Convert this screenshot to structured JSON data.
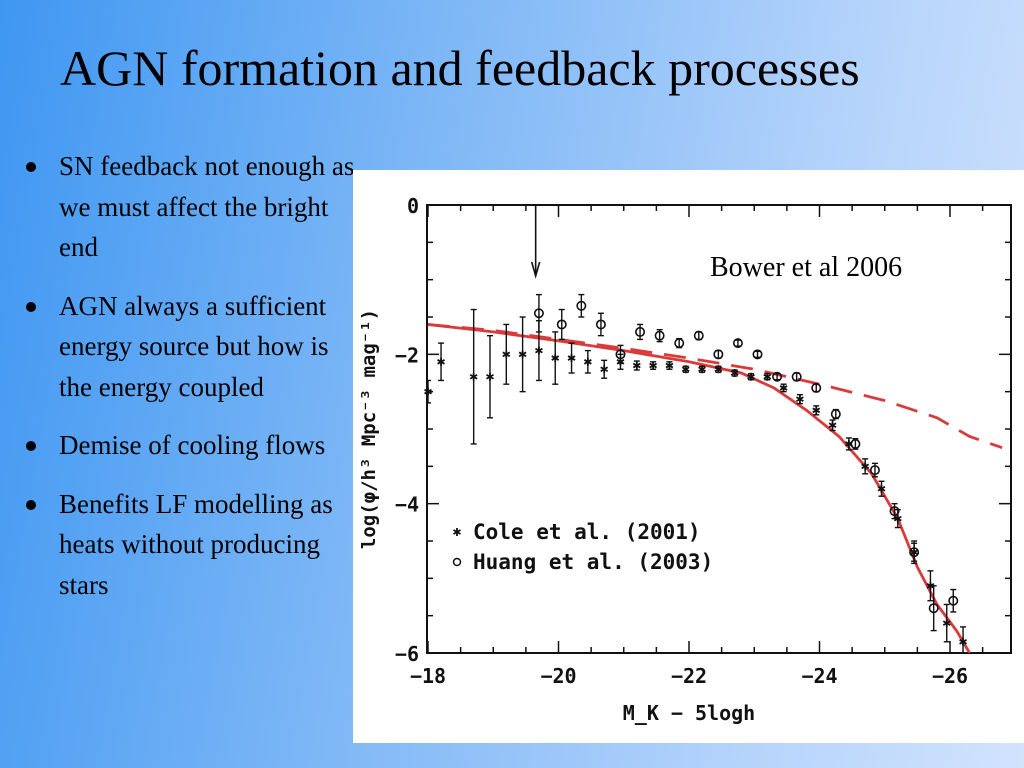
{
  "slide": {
    "title": "AGN formation and feedback processes",
    "bullets": [
      "SN feedback not enough as we must affect the bright end",
      "AGN always a sufficient energy source but how is the energy coupled",
      "Demise of cooling flows",
      "Benefits LF modelling as heats without producing stars"
    ]
  },
  "colors": {
    "background_left": "#3f97f2",
    "background_right": "#d2e3fd",
    "model_curves": "#d93b3b",
    "data_points": "#111111"
  },
  "chart_data": {
    "type": "scatter",
    "citation": "Bower et al 2006",
    "xlabel": "M_K − 5logh",
    "ylabel": "log(φ/h³ Mpc⁻³ mag⁻¹)",
    "xlim": [
      -18,
      -26.8
    ],
    "ylim": [
      -6,
      0
    ],
    "x_ticks": [
      -18,
      -20,
      -22,
      -24,
      -26
    ],
    "y_ticks": [
      0,
      -2,
      -4,
      -6
    ],
    "x_tick_labels": [
      "−18",
      "−20",
      "−22",
      "−24",
      "−26"
    ],
    "y_tick_labels": [
      "0",
      "−2",
      "−4",
      "−6"
    ],
    "grid": false,
    "legend_position": "bottom-left",
    "arrow_annotation_x": -19.65,
    "series": [
      {
        "name": "Cole et al. (2001)",
        "marker": "asterisk",
        "points": [
          {
            "x": -18.0,
            "y": -2.5,
            "err": 0.15
          },
          {
            "x": -18.2,
            "y": -2.1,
            "err": 0.25
          },
          {
            "x": -18.7,
            "y": -2.3,
            "err": 0.9
          },
          {
            "x": -18.95,
            "y": -2.3,
            "err": 0.55
          },
          {
            "x": -19.2,
            "y": -2.0,
            "err": 0.4
          },
          {
            "x": -19.45,
            "y": -2.0,
            "err": 0.5
          },
          {
            "x": -19.7,
            "y": -1.95,
            "err": 0.4
          },
          {
            "x": -19.95,
            "y": -2.05,
            "err": 0.35
          },
          {
            "x": -20.2,
            "y": -2.05,
            "err": 0.2
          },
          {
            "x": -20.45,
            "y": -2.1,
            "err": 0.15
          },
          {
            "x": -20.7,
            "y": -2.2,
            "err": 0.12
          },
          {
            "x": -20.95,
            "y": -2.1,
            "err": 0.1
          },
          {
            "x": -21.2,
            "y": -2.15,
            "err": 0.06
          },
          {
            "x": -21.45,
            "y": -2.15,
            "err": 0.05
          },
          {
            "x": -21.7,
            "y": -2.15,
            "err": 0.05
          },
          {
            "x": -21.95,
            "y": -2.2,
            "err": 0.04
          },
          {
            "x": -22.2,
            "y": -2.2,
            "err": 0.04
          },
          {
            "x": -22.45,
            "y": -2.2,
            "err": 0.04
          },
          {
            "x": -22.7,
            "y": -2.25,
            "err": 0.04
          },
          {
            "x": -22.95,
            "y": -2.3,
            "err": 0.04
          },
          {
            "x": -23.2,
            "y": -2.3,
            "err": 0.04
          },
          {
            "x": -23.45,
            "y": -2.45,
            "err": 0.05
          },
          {
            "x": -23.7,
            "y": -2.6,
            "err": 0.06
          },
          {
            "x": -23.95,
            "y": -2.75,
            "err": 0.06
          },
          {
            "x": -24.2,
            "y": -2.95,
            "err": 0.07
          },
          {
            "x": -24.45,
            "y": -3.2,
            "err": 0.08
          },
          {
            "x": -24.7,
            "y": -3.5,
            "err": 0.1
          },
          {
            "x": -24.95,
            "y": -3.8,
            "err": 0.1
          },
          {
            "x": -25.2,
            "y": -4.2,
            "err": 0.12
          },
          {
            "x": -25.45,
            "y": -4.65,
            "err": 0.15
          },
          {
            "x": -25.7,
            "y": -5.1,
            "err": 0.2
          },
          {
            "x": -25.95,
            "y": -5.6,
            "err": 0.25
          },
          {
            "x": -26.2,
            "y": -5.85,
            "err": 0.2
          }
        ]
      },
      {
        "name": "Huang et al. (2003)",
        "marker": "circle",
        "points": [
          {
            "x": -19.7,
            "y": -1.45,
            "err": 0.25
          },
          {
            "x": -20.05,
            "y": -1.6,
            "err": 0.2
          },
          {
            "x": -20.35,
            "y": -1.35,
            "err": 0.15
          },
          {
            "x": -20.65,
            "y": -1.6,
            "err": 0.15
          },
          {
            "x": -20.95,
            "y": -2.0,
            "err": 0.12
          },
          {
            "x": -21.25,
            "y": -1.7,
            "err": 0.1
          },
          {
            "x": -21.55,
            "y": -1.75,
            "err": 0.08
          },
          {
            "x": -21.85,
            "y": -1.85,
            "err": 0.06
          },
          {
            "x": -22.15,
            "y": -1.75,
            "err": 0.05
          },
          {
            "x": -22.45,
            "y": -2.0,
            "err": 0.05
          },
          {
            "x": -22.75,
            "y": -1.85,
            "err": 0.04
          },
          {
            "x": -23.05,
            "y": -2.0,
            "err": 0.04
          },
          {
            "x": -23.35,
            "y": -2.3,
            "err": 0.04
          },
          {
            "x": -23.65,
            "y": -2.3,
            "err": 0.05
          },
          {
            "x": -23.95,
            "y": -2.45,
            "err": 0.05
          },
          {
            "x": -24.25,
            "y": -2.8,
            "err": 0.06
          },
          {
            "x": -24.55,
            "y": -3.2,
            "err": 0.07
          },
          {
            "x": -24.85,
            "y": -3.55,
            "err": 0.09
          },
          {
            "x": -25.15,
            "y": -4.1,
            "err": 0.1
          },
          {
            "x": -25.45,
            "y": -4.65,
            "err": 0.12
          },
          {
            "x": -25.75,
            "y": -5.4,
            "err": 0.3
          },
          {
            "x": -26.05,
            "y": -5.3,
            "err": 0.15
          }
        ]
      },
      {
        "name": "",
        "style": "solid",
        "points": [
          {
            "x": -18.0,
            "y": -1.6
          },
          {
            "x": -19.0,
            "y": -1.7
          },
          {
            "x": -20.0,
            "y": -1.82
          },
          {
            "x": -21.0,
            "y": -1.95
          },
          {
            "x": -22.0,
            "y": -2.1
          },
          {
            "x": -22.8,
            "y": -2.25
          },
          {
            "x": -23.3,
            "y": -2.45
          },
          {
            "x": -23.8,
            "y": -2.75
          },
          {
            "x": -24.3,
            "y": -3.1
          },
          {
            "x": -24.8,
            "y": -3.6
          },
          {
            "x": -25.2,
            "y": -4.2
          },
          {
            "x": -25.5,
            "y": -4.85
          },
          {
            "x": -25.8,
            "y": -5.35
          },
          {
            "x": -26.1,
            "y": -5.7
          },
          {
            "x": -26.3,
            "y": -6.0
          }
        ]
      },
      {
        "name": "",
        "style": "dashed",
        "points": [
          {
            "x": -18.0,
            "y": -1.6
          },
          {
            "x": -19.0,
            "y": -1.68
          },
          {
            "x": -20.0,
            "y": -1.8
          },
          {
            "x": -21.0,
            "y": -1.92
          },
          {
            "x": -22.0,
            "y": -2.05
          },
          {
            "x": -23.0,
            "y": -2.2
          },
          {
            "x": -24.0,
            "y": -2.4
          },
          {
            "x": -25.0,
            "y": -2.62
          },
          {
            "x": -25.8,
            "y": -2.85
          },
          {
            "x": -26.3,
            "y": -3.1
          },
          {
            "x": -26.8,
            "y": -3.25
          }
        ]
      }
    ]
  }
}
